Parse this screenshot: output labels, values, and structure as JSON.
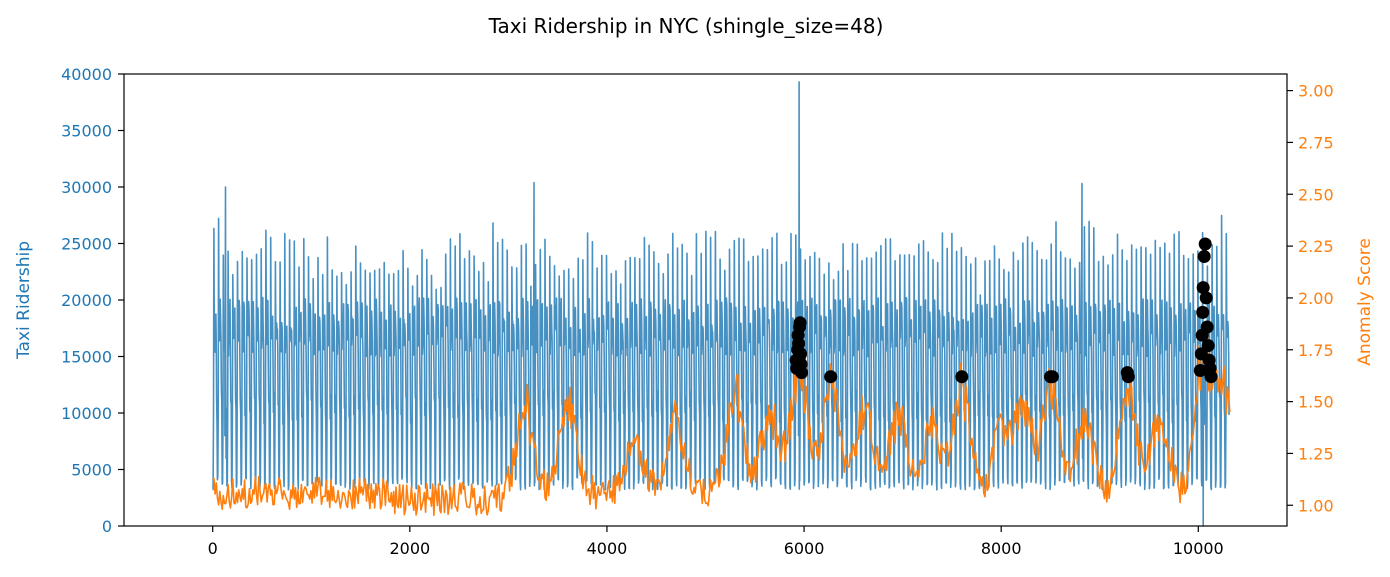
{
  "chart_data": {
    "type": "line",
    "title": "Taxi Ridership in NYC (shingle_size=48)",
    "xlabel": "",
    "ylabel": "Taxi Ridership",
    "y2label": "Anomaly Score",
    "xlim": [
      -900,
      10900
    ],
    "ylim": [
      0,
      40000
    ],
    "y2lim": [
      0.9,
      3.08
    ],
    "x_ticks": [
      0,
      2000,
      4000,
      6000,
      8000,
      10000
    ],
    "y_ticks": [
      0,
      5000,
      10000,
      15000,
      20000,
      25000,
      30000,
      35000,
      40000
    ],
    "y2_ticks": [
      1.0,
      1.25,
      1.5,
      1.75,
      2.0,
      2.25,
      2.5,
      2.75,
      3.0
    ],
    "x_tick_labels": [
      "0",
      "2000",
      "4000",
      "6000",
      "8000",
      "10000"
    ],
    "y_tick_labels": [
      "0",
      "5000",
      "10000",
      "15000",
      "20000",
      "25000",
      "30000",
      "35000",
      "40000"
    ],
    "y2_tick_labels": [
      "1.00",
      "1.25",
      "1.50",
      "1.75",
      "2.00",
      "2.25",
      "2.50",
      "2.75",
      "3.00"
    ],
    "colors": {
      "ridership": "#1f77b4",
      "anomaly": "#ff7f0e",
      "anomaly_points": "#000000"
    },
    "series": [
      {
        "axis": "left",
        "x_range": [
          0,
          10320
        ],
        "x_step": 48,
        "daily_peaks": [
          27600,
          30000,
          25800,
          24400,
          22400,
          24200,
          24800,
          25300,
          24500,
          25900,
          26100,
          26400,
          25600,
          24300,
          24400,
          26100,
          26400,
          25800,
          24800,
          25800,
          24600,
          24300,
          24000,
          23800,
          25700,
          24900,
          23600,
          23100,
          22600,
          22800,
          24900,
          24200,
          23400,
          24400,
          24600,
          23400,
          23600,
          22400,
          23400,
          24800,
          26300,
          23700,
          22300,
          24100,
          25200,
          25700,
          23800,
          22800,
          23400,
          24600,
          25800,
          26600,
          25900,
          24700,
          25100,
          24700,
          23300,
          25400,
          22700,
          27000,
          26000,
          25700,
          25100,
          23900,
          24500,
          25700,
          25800,
          22300,
          24800,
          25500,
          26400,
          24400,
          23700,
          24500,
          25100,
          24900,
          23000,
          24300,
          25600,
          26800,
          25800,
          24800,
          25600,
          25300,
          24700,
          24900,
          23300,
          25700,
          25300,
          26200,
          26100,
          25800,
          25300,
          24800,
          25300,
          24000,
          24500,
          26600,
          26700,
          25600,
          24200,
          24500,
          27200,
          25200,
          26100,
          26900,
          27100,
          25200,
          24500,
          25000,
          25400,
          26600,
          27100,
          25300,
          24700,
          24900,
          25400,
          26300,
          27800,
          28000,
          25400,
          24500,
          26100,
          25900,
          25500,
          25700,
          26300,
          24200,
          25000,
          24500,
          24200,
          23900,
          24500,
          25000,
          23000,
          25400,
          26100,
          25900,
          23900,
          25100,
          24600,
          26100,
          25800,
          26200,
          25000,
          24900,
          24000,
          25500,
          25700,
          26700,
          26500,
          25000,
          25400,
          24900,
          26400,
          26400,
          26200,
          26000,
          25300,
          24900,
          24400,
          23800,
          22600,
          23900,
          25800,
          26400,
          25600,
          25000,
          24100,
          24800,
          25100,
          25600,
          26700,
          25500,
          24900,
          24800,
          25400,
          26000,
          27200,
          26900,
          25800,
          24700,
          24800,
          25100,
          27100,
          28800,
          28200,
          25700,
          24600,
          24500,
          26400,
          27000,
          26800,
          25800,
          25000,
          26200,
          26000,
          26000,
          25400,
          25500,
          25500,
          25900,
          26400,
          26600,
          26500,
          25100,
          25700,
          26400,
          25800,
          26300,
          24800,
          25200,
          26800,
          28800,
          28000
        ],
        "spikes": [
          [
            5950,
            39300
          ],
          [
            3260,
            30400
          ],
          [
            8820,
            30300
          ],
          [
            130,
            30000
          ]
        ]
      },
      {
        "axis": "right",
        "x_range": [
          0,
          10320
        ],
        "baseline": 1.06,
        "bumps": [
          [
            3170,
            1.5
          ],
          [
            3600,
            1.53
          ],
          [
            4280,
            1.32
          ],
          [
            4690,
            1.44
          ],
          [
            5300,
            1.58
          ],
          [
            5650,
            1.47
          ],
          [
            5950,
            1.72
          ],
          [
            6270,
            1.62
          ],
          [
            6620,
            1.53
          ],
          [
            6960,
            1.48
          ],
          [
            7300,
            1.4
          ],
          [
            7600,
            1.62
          ],
          [
            8000,
            1.4
          ],
          [
            8230,
            1.5
          ],
          [
            8510,
            1.62
          ],
          [
            8850,
            1.44
          ],
          [
            9280,
            1.62
          ],
          [
            9610,
            1.46
          ],
          [
            10050,
            1.75
          ],
          [
            10250,
            1.6
          ]
        ],
        "anomaly_points": [
          [
            5920,
            1.7
          ],
          [
            5925,
            1.66
          ],
          [
            5935,
            1.75
          ],
          [
            5940,
            1.82
          ],
          [
            5945,
            1.78
          ],
          [
            5950,
            1.71
          ],
          [
            5955,
            1.86
          ],
          [
            5960,
            1.88
          ],
          [
            5965,
            1.73
          ],
          [
            5970,
            1.68
          ],
          [
            5975,
            1.64
          ],
          [
            6270,
            1.62
          ],
          [
            7600,
            1.62
          ],
          [
            8500,
            1.62
          ],
          [
            8520,
            1.62
          ],
          [
            9280,
            1.64
          ],
          [
            9290,
            1.62
          ],
          [
            10020,
            1.65
          ],
          [
            10030,
            1.73
          ],
          [
            10040,
            1.82
          ],
          [
            10045,
            1.93
          ],
          [
            10050,
            2.05
          ],
          [
            10060,
            2.2
          ],
          [
            10070,
            2.26
          ],
          [
            10080,
            2.0
          ],
          [
            10090,
            1.86
          ],
          [
            10100,
            1.77
          ],
          [
            10110,
            1.7
          ],
          [
            10120,
            1.66
          ],
          [
            10130,
            1.62
          ]
        ]
      }
    ]
  }
}
